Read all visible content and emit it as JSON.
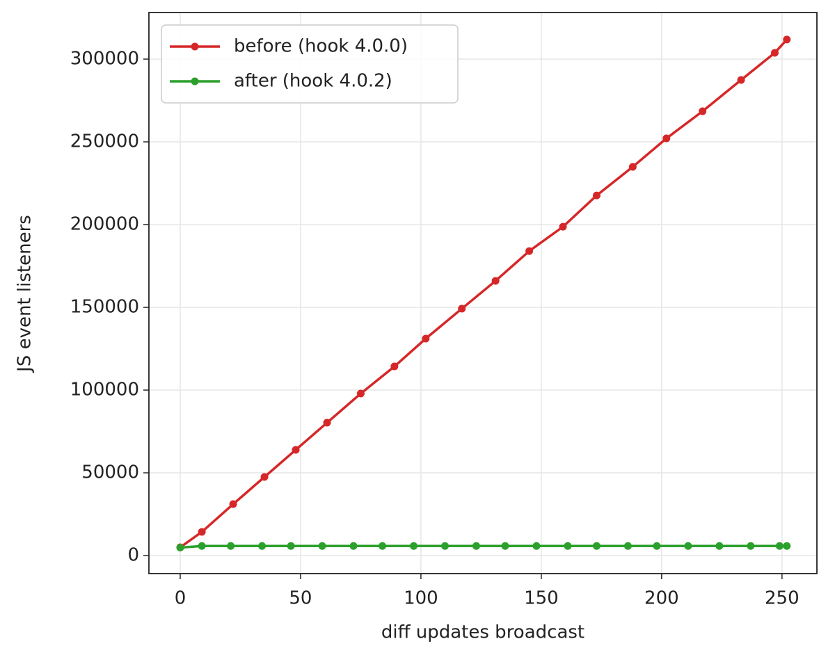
{
  "chart_data": {
    "type": "line",
    "xlabel": "diff updates broadcast",
    "ylabel": "JS event listeners",
    "series": [
      {
        "name": "before (hook 4.0.0)",
        "color": "#d62728",
        "x": [
          0,
          9,
          22,
          35,
          48,
          61,
          75,
          89,
          102,
          117,
          131,
          145,
          159,
          173,
          188,
          202,
          217,
          233,
          247,
          252
        ],
        "values": [
          5000,
          14300,
          31100,
          47500,
          63900,
          80300,
          97900,
          114300,
          131100,
          149200,
          166000,
          184000,
          198700,
          217600,
          234900,
          252100,
          268500,
          287400,
          303800,
          311800
        ]
      },
      {
        "name": "after (hook 4.0.2)",
        "color": "#2ca02c",
        "x": [
          0,
          9,
          21,
          34,
          46,
          59,
          72,
          84,
          97,
          110,
          123,
          135,
          148,
          161,
          173,
          186,
          198,
          211,
          224,
          237,
          249,
          252
        ],
        "values": [
          4800,
          5800,
          5800,
          5800,
          5800,
          5800,
          5800,
          5800,
          5800,
          5800,
          5800,
          5800,
          5800,
          5800,
          5800,
          5800,
          5800,
          5800,
          5800,
          5800,
          5800,
          5800
        ]
      }
    ],
    "xlim": [
      -13,
      264.5
    ],
    "ylim": [
      -10900,
      328150
    ],
    "xticks": [
      0,
      50,
      100,
      150,
      200,
      250
    ],
    "yticks": [
      0,
      50000,
      100000,
      150000,
      200000,
      250000,
      300000
    ],
    "grid": true,
    "legend": "upper left"
  }
}
